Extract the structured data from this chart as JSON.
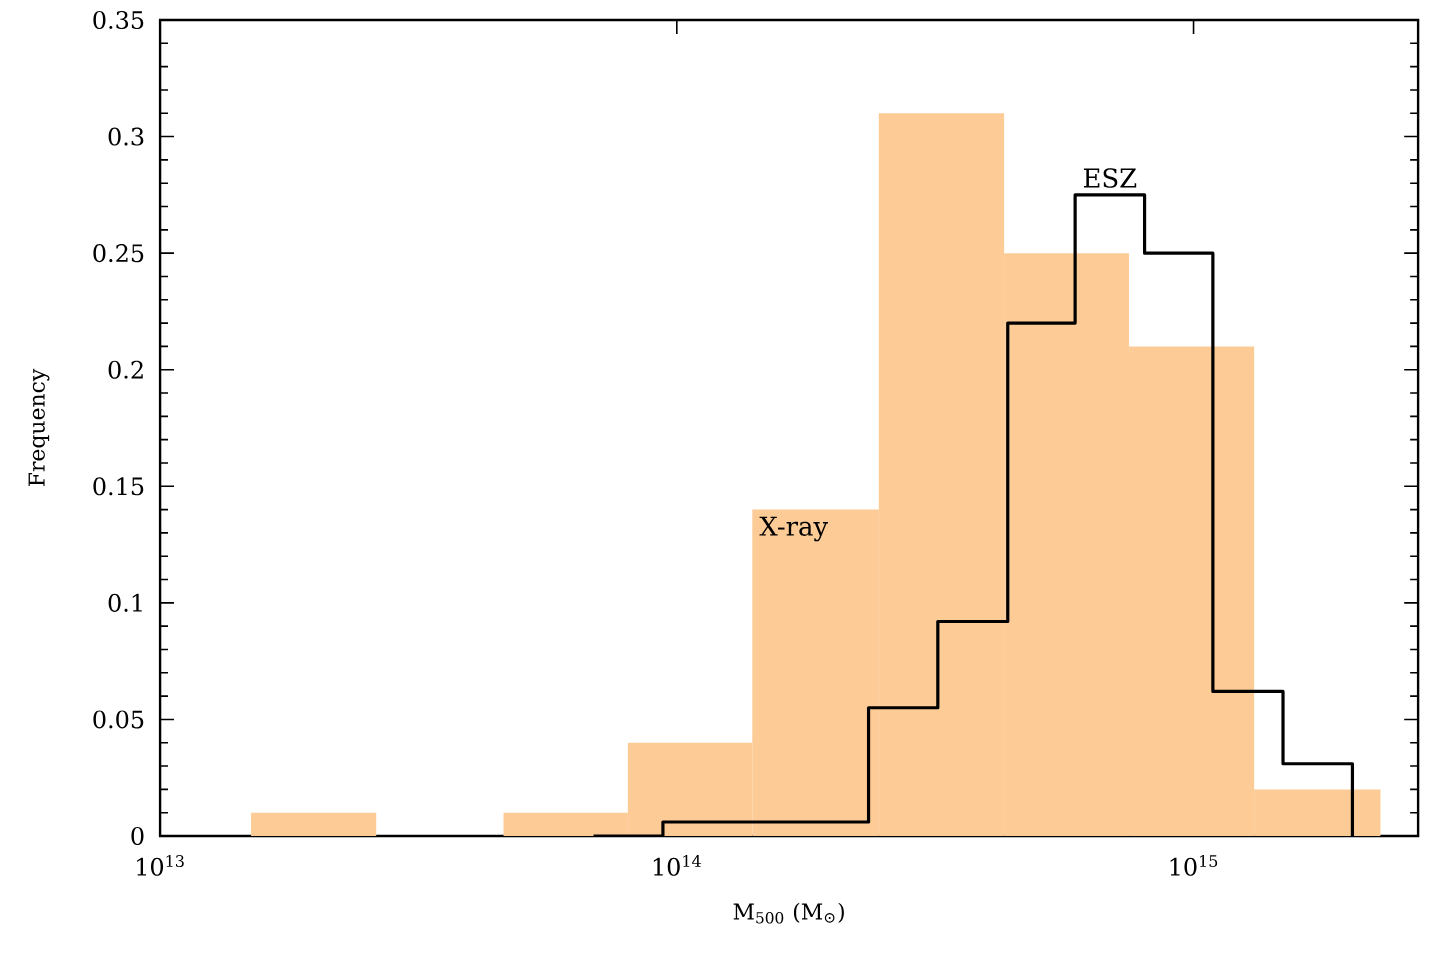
{
  "chart_data": {
    "type": "histogram",
    "xlabel": "M$_{500}$ (M$_{⊙}$)",
    "ylabel": "Frequency",
    "log": "x",
    "xlim": [
      10000000000000.0,
      2720000000000000.0
    ],
    "xticks": [
      {
        "value": 10000000000000.0,
        "label": "10$^{13}$"
      },
      {
        "value": 100000000000000.0,
        "label": "10$^{14}$"
      },
      {
        "value": 1000000000000000.0,
        "label": "10$^{15}$"
      }
    ],
    "ylim": [
      0,
      0.35
    ],
    "yticks": [
      0,
      0.05,
      0.1,
      0.15,
      0.2,
      0.25,
      0.3,
      0.35
    ],
    "bins": [
      15000000000000.0,
      26200000000000.0,
      46200000000000.0,
      80400000000000.0,
      140000000000000.0,
      246000000000000.0,
      430000000000000.0,
      750000000000000.0,
      1310000000000000.0,
      2300000000000000.0
    ],
    "series": [
      {
        "name": "X-ray",
        "color": "#fccb96",
        "values": [
          0.01,
          0,
          0.01,
          0.04,
          0.14,
          0.31,
          0.25,
          0.21,
          0.02
        ]
      },
      {
        "name": "ESZ",
        "type": "step",
        "color": "#000000",
        "x": [
          69000000000000.0,
          94000000000000.0,
          235000000000000.0,
          320000000000000.0,
          437000000000000.0,
          590000000000000.0,
          804000000000000.0,
          1090000000000000.0,
          1490000000000000.0,
          2030000000000000.0
        ],
        "values": [
          0,
          0.006,
          0.055,
          0.092,
          0.22,
          0.275,
          0.25,
          0.062,
          0.031,
          0
        ]
      }
    ]
  }
}
